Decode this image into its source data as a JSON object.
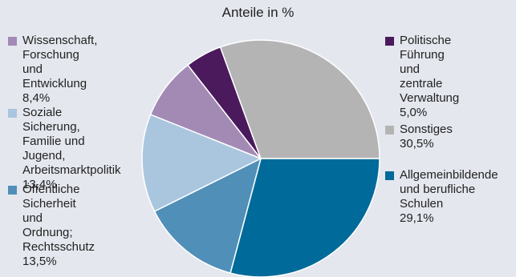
{
  "chart_data": {
    "type": "pie",
    "title": "Anteile in %",
    "slices": [
      {
        "label": "Allgemeinbildende und berufliche Schulen",
        "value": 29.1,
        "value_label": "29,1%",
        "color": "#006b9a"
      },
      {
        "label": "Öffentliche Sicherheit und Ordnung; Rechtsschutz",
        "value": 13.5,
        "value_label": "13,5%",
        "color": "#4f8fb8"
      },
      {
        "label": "Soziale Sicherung, Familie und Jugend, Arbeitsmarktpolitik",
        "value": 13.4,
        "value_label": "13,4%",
        "color": "#a9c6de"
      },
      {
        "label": "Wissenschaft, Forschung und Entwicklung",
        "value": 8.4,
        "value_label": "8,4%",
        "color": "#a38ab5"
      },
      {
        "label": "Politische Führung und zentrale Verwaltung",
        "value": 5.0,
        "value_label": "5,0%",
        "color": "#4a1a5c"
      },
      {
        "label": "Sonstiges",
        "value": 30.5,
        "value_label": "30,5%",
        "color": "#b4b4b4"
      }
    ]
  },
  "legend": [
    {
      "text": "Wissenschaft,\nForschung und\nEntwicklung\n8,4%",
      "color": "#a38ab5"
    },
    {
      "text": "Soziale Sicherung,\nFamilie und Jugend,\nArbeitsmarktpolitik\n13,4%",
      "color": "#a9c6de"
    },
    {
      "text": "Öffentliche\nSicherheit und\nOrdnung;\nRechtsschutz\n13,5%",
      "color": "#4f8fb8"
    },
    {
      "text": "Politische\nFührung und\nzentrale\nVerwaltung\n5,0%",
      "color": "#4a1a5c"
    },
    {
      "text": "Sonstiges\n30,5%",
      "color": "#b4b4b4"
    },
    {
      "text": "Allgemeinbildende\nund berufliche\nSchulen\n29,1%",
      "color": "#006b9a"
    }
  ]
}
